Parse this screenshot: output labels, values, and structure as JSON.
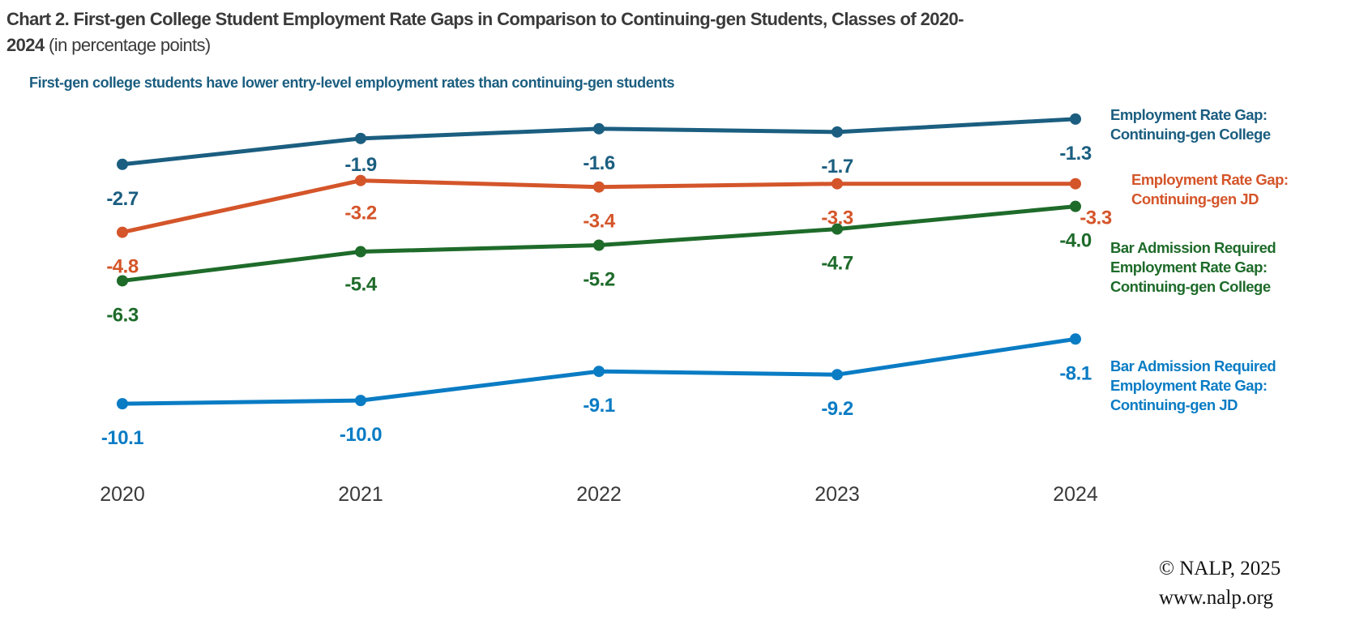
{
  "title": {
    "bold_line1": "Chart 2. First-gen College Student Employment Rate Gaps in Comparison to Continuing-gen Students, Classes of 2020-",
    "bold_line2": "2024",
    "normal_suffix": " (in percentage points)"
  },
  "subtitle": "First-gen college students have lower entry-level employment rates than continuing-gen students",
  "footer": {
    "copyright": "© NALP, 2025",
    "url": "www.nalp.org"
  },
  "chart_data": {
    "type": "line",
    "categories": [
      "2020",
      "2021",
      "2022",
      "2023",
      "2024"
    ],
    "ylim": [
      -11.5,
      0
    ],
    "grid": false,
    "legend": "right (inline labels at line ends)",
    "series": [
      {
        "name": "Employment Rate Gap: Continuing-gen College",
        "label_lines": [
          "Employment Rate Gap:",
          "Continuing-gen College"
        ],
        "color": "#1b5e80",
        "values": [
          -2.7,
          -1.9,
          -1.6,
          -1.7,
          -1.3
        ],
        "labels": [
          "-2.7",
          "-1.9",
          "-1.6",
          "-1.7",
          "-1.3"
        ]
      },
      {
        "name": "Employment Rate Gap: Continuing-gen JD",
        "label_lines": [
          "Employment Rate Gap:",
          "Continuing-gen JD"
        ],
        "color": "#d4552a",
        "values": [
          -4.8,
          -3.2,
          -3.4,
          -3.3,
          -3.3
        ],
        "labels": [
          "-4.8",
          "-3.2",
          "-3.4",
          "-3.3",
          "-3.3"
        ]
      },
      {
        "name": "Bar Admission Required Employment Rate Gap: Continuing-gen College",
        "label_lines": [
          "Bar Admission Required",
          "Employment Rate Gap:",
          "Continuing-gen College"
        ],
        "color": "#1e6b2a",
        "values": [
          -6.3,
          -5.4,
          -5.2,
          -4.7,
          -4.0
        ],
        "labels": [
          "-6.3",
          "-5.4",
          "-5.2",
          "-4.7",
          "-4.0"
        ]
      },
      {
        "name": "Bar Admission Required Employment Rate Gap: Continuing-gen JD",
        "label_lines": [
          "Bar Admission Required",
          "Employment Rate Gap:",
          "Continuing-gen JD"
        ],
        "color": "#0a7cc4",
        "values": [
          -10.1,
          -10.0,
          -9.1,
          -9.2,
          -8.1
        ],
        "labels": [
          "-10.1",
          "-10.0",
          "-9.1",
          "-9.2",
          "-8.1"
        ]
      }
    ]
  }
}
